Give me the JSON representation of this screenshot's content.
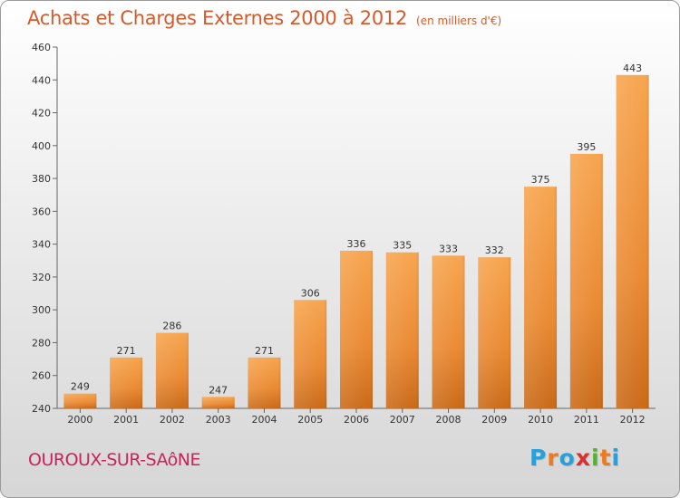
{
  "title": {
    "main": "Achats et Charges Externes 2000 à 2012",
    "unit": "(en milliers d'€)"
  },
  "location": "OUROUX-SUR-SAôNE",
  "brand": {
    "letters": [
      "P",
      "r",
      "o",
      "x",
      "i",
      "t",
      "i"
    ],
    "colors": [
      "#2aa0d8",
      "#ee7a1c",
      "#2aa0d8",
      "#d8302e",
      "#58b130",
      "#ee7a1c",
      "#2aa0d8"
    ]
  },
  "chart_data": {
    "type": "bar",
    "categories": [
      "2000",
      "2001",
      "2002",
      "2003",
      "2004",
      "2005",
      "2006",
      "2007",
      "2008",
      "2009",
      "2010",
      "2011",
      "2012"
    ],
    "values": [
      249,
      271,
      286,
      247,
      271,
      306,
      336,
      335,
      333,
      332,
      375,
      395,
      443
    ],
    "title": "Achats et Charges Externes 2000 à 2012",
    "xlabel": "",
    "ylabel": "",
    "ylim": [
      240,
      460
    ],
    "yticks": [
      240,
      260,
      280,
      300,
      320,
      340,
      360,
      380,
      400,
      420,
      440,
      460
    ],
    "grid": false,
    "bar_color": "#f39b42"
  }
}
